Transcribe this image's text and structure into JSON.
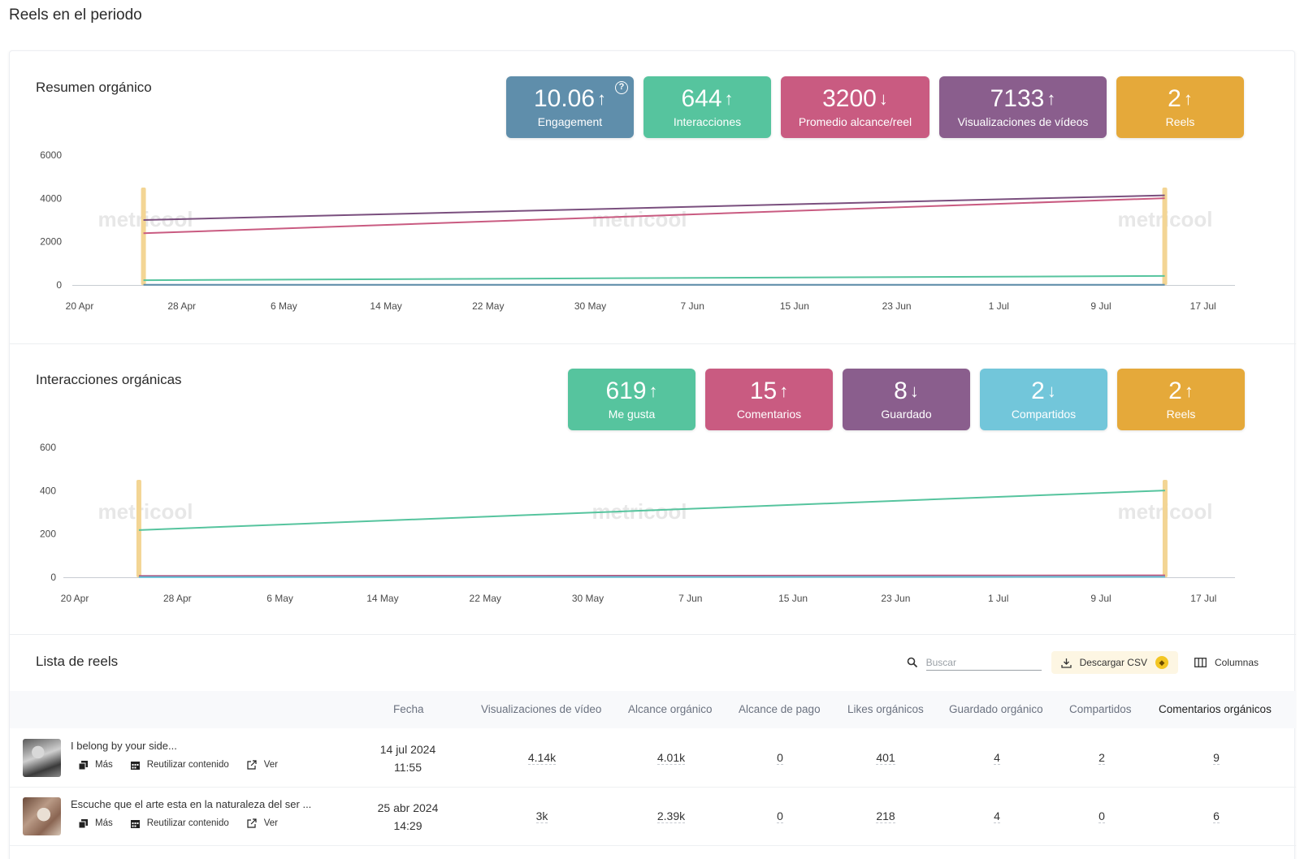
{
  "page_title": "Reels en el periodo",
  "watermark": "metricool",
  "summary": {
    "title": "Resumen orgánico",
    "kpis": [
      {
        "value": "10.06",
        "trend": "up",
        "label": "Engagement",
        "color": "#5f8eab",
        "help": true
      },
      {
        "value": "644",
        "trend": "up",
        "label": "Interacciones",
        "color": "#56c49e"
      },
      {
        "value": "3200",
        "trend": "down",
        "label": "Promedio alcance/reel",
        "color": "#c95b81"
      },
      {
        "value": "7133",
        "trend": "up",
        "label": "Visualizaciones de vídeos",
        "color": "#8a5e8d"
      },
      {
        "value": "2",
        "trend": "up",
        "label": "Reels",
        "color": "#e5a93a"
      }
    ]
  },
  "interactions": {
    "title": "Interacciones orgánicas",
    "kpis": [
      {
        "value": "619",
        "trend": "up",
        "label": "Me gusta",
        "color": "#56c49e"
      },
      {
        "value": "15",
        "trend": "up",
        "label": "Comentarios",
        "color": "#c95b81"
      },
      {
        "value": "8",
        "trend": "down",
        "label": "Guardado",
        "color": "#8a5e8d"
      },
      {
        "value": "2",
        "trend": "down",
        "label": "Compartidos",
        "color": "#72c6da"
      },
      {
        "value": "2",
        "trend": "up",
        "label": "Reels",
        "color": "#e5a93a"
      }
    ]
  },
  "chart_data": [
    {
      "type": "line",
      "x_ticks": [
        "20 Apr",
        "28 Apr",
        "6 May",
        "14 May",
        "22 May",
        "30 May",
        "7 Jun",
        "15 Jun",
        "23 Jun",
        "1 Jul",
        "9 Jul",
        "17 Jul"
      ],
      "y_ticks": [
        "0",
        "2000",
        "4000",
        "6000"
      ],
      "ylim": [
        0,
        6000
      ],
      "grid": false,
      "highlight_dates": [
        "2024-04-25",
        "2024-07-14"
      ],
      "series": [
        {
          "color": "#7a4f7e",
          "points": [
            [
              "2024-04-25",
              3000
            ],
            [
              "2024-07-14",
              4140
            ]
          ]
        },
        {
          "color": "#c95b81",
          "points": [
            [
              "2024-04-25",
              2390
            ],
            [
              "2024-07-14",
              4010
            ]
          ]
        },
        {
          "color": "#56c49e",
          "points": [
            [
              "2024-04-25",
              222
            ],
            [
              "2024-07-14",
              416
            ]
          ]
        },
        {
          "color": "#5f8eab",
          "points": [
            [
              "2024-04-25",
              10
            ],
            [
              "2024-07-14",
              10
            ]
          ]
        }
      ]
    },
    {
      "type": "line",
      "x_ticks": [
        "20 Apr",
        "28 Apr",
        "6 May",
        "14 May",
        "22 May",
        "30 May",
        "7 Jun",
        "15 Jun",
        "23 Jun",
        "1 Jul",
        "9 Jul",
        "17 Jul"
      ],
      "y_ticks": [
        "0",
        "200",
        "400",
        "600"
      ],
      "ylim": [
        0,
        600
      ],
      "grid": false,
      "highlight_dates": [
        "2024-04-25",
        "2024-07-14"
      ],
      "series": [
        {
          "color": "#56c49e",
          "points": [
            [
              "2024-04-25",
              218
            ],
            [
              "2024-07-14",
              401
            ]
          ]
        },
        {
          "color": "#c95b81",
          "points": [
            [
              "2024-04-25",
              6
            ],
            [
              "2024-07-14",
              9
            ]
          ]
        },
        {
          "color": "#8a5e8d",
          "points": [
            [
              "2024-04-25",
              4
            ],
            [
              "2024-07-14",
              4
            ]
          ]
        },
        {
          "color": "#72c6da",
          "points": [
            [
              "2024-04-25",
              0
            ],
            [
              "2024-07-14",
              2
            ]
          ]
        }
      ]
    }
  ],
  "reels": {
    "title": "Lista de reels",
    "search_placeholder": "Buscar",
    "download_label": "Descargar CSV",
    "columns_label": "Columnas",
    "headers": [
      "Fecha",
      "Visualizaciones de vídeo",
      "Alcance orgánico",
      "Alcance de pago",
      "Likes orgánicos",
      "Guardado orgánico",
      "Compartidos",
      "Comentarios orgánicos"
    ],
    "actions": [
      "Más",
      "Reutilizar contenido",
      "Ver"
    ],
    "rows": [
      {
        "title": "I belong by your side...",
        "date": "14 jul 2024",
        "time": "11:55",
        "values": [
          "4.14k",
          "4.01k",
          "0",
          "401",
          "4",
          "2",
          "9"
        ]
      },
      {
        "title": "Escuche que el arte esta en la naturaleza del ser ...",
        "date": "25 abr 2024",
        "time": "14:29",
        "values": [
          "3k",
          "2.39k",
          "0",
          "218",
          "4",
          "0",
          "6"
        ]
      }
    ]
  }
}
